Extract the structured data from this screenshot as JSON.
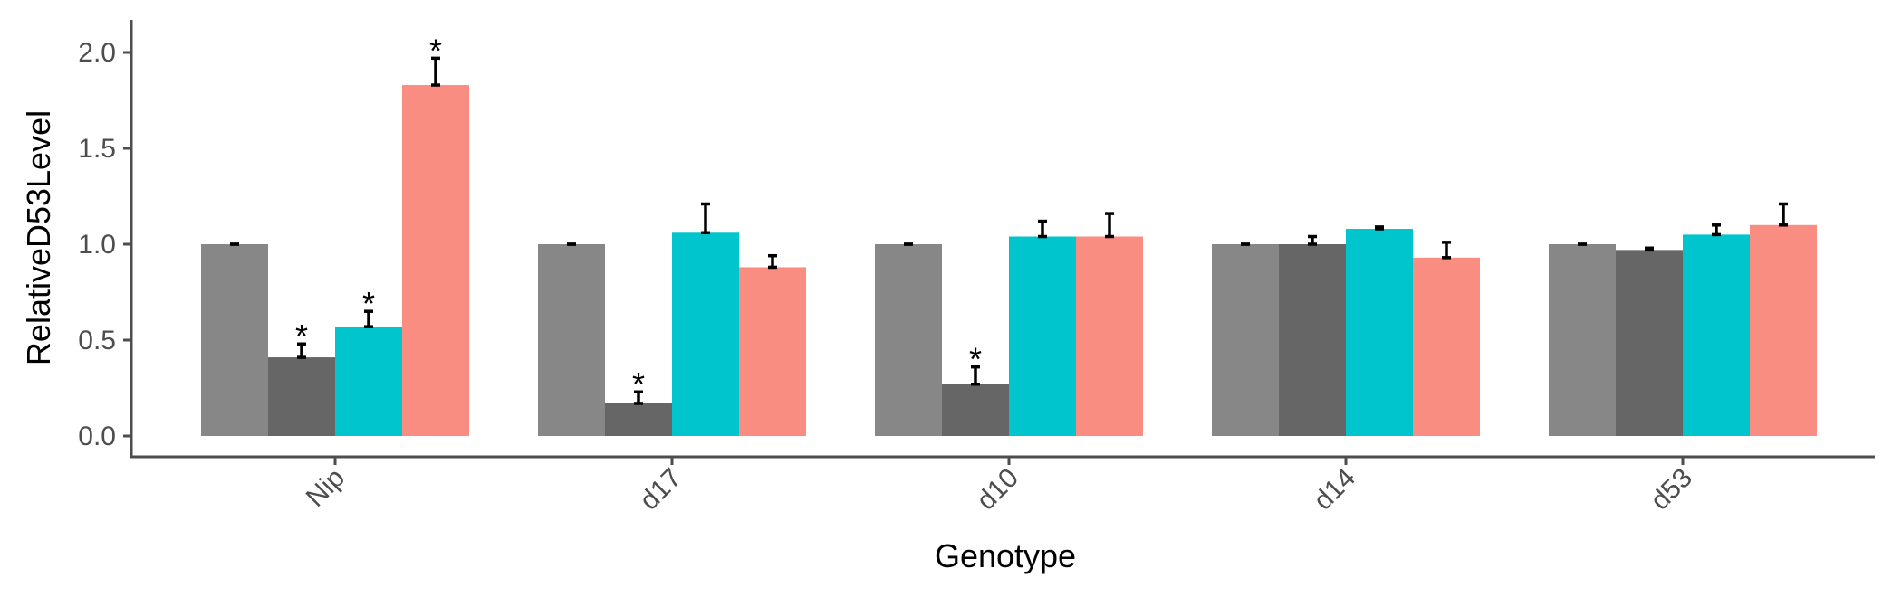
{
  "chart_data": {
    "type": "bar",
    "xlabel": "Genotype",
    "ylabel": "RelativeD53Level",
    "ylim": [
      -0.1,
      2.2
    ],
    "yticks": [
      0.0,
      0.5,
      1.0,
      1.5,
      2.0
    ],
    "ytick_labels": [
      "0.0",
      "0.5",
      "1.0",
      "1.5",
      "2.0"
    ],
    "categories": [
      "Nip",
      "d17",
      "d10",
      "d14",
      "d53"
    ],
    "grid": false,
    "legend": "none",
    "significance_marker": "*",
    "series": [
      {
        "color": "#878787",
        "values": [
          1.0,
          1.0,
          1.0,
          1.0,
          1.0
        ],
        "errors": [
          0.0,
          0.0,
          0.0,
          0.0,
          0.0
        ],
        "significant": [
          false,
          false,
          false,
          false,
          false
        ]
      },
      {
        "color": "#666666",
        "values": [
          0.41,
          0.17,
          0.27,
          1.0,
          0.97
        ],
        "errors": [
          0.07,
          0.06,
          0.09,
          0.04,
          0.01
        ],
        "significant": [
          true,
          true,
          true,
          false,
          false
        ]
      },
      {
        "color": "#00c5cd",
        "values": [
          0.57,
          1.06,
          1.04,
          1.08,
          1.05
        ],
        "errors": [
          0.08,
          0.15,
          0.08,
          0.01,
          0.05
        ],
        "significant": [
          true,
          false,
          false,
          false,
          false
        ]
      },
      {
        "color": "#fa8d82",
        "values": [
          1.83,
          0.88,
          1.04,
          0.93,
          1.1
        ],
        "errors": [
          0.14,
          0.06,
          0.12,
          0.08,
          0.11
        ],
        "significant": [
          true,
          false,
          false,
          false,
          false
        ]
      }
    ]
  }
}
